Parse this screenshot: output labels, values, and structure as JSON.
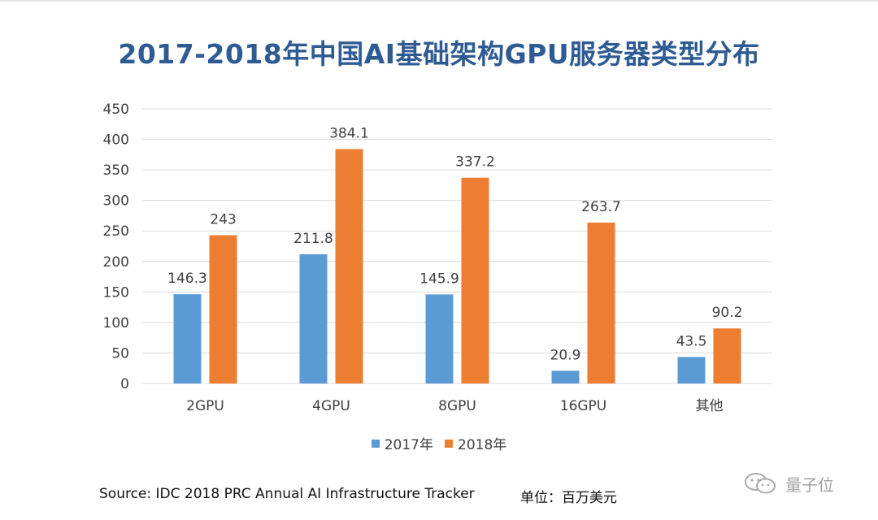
{
  "title": "2017-2018年中国AI基础架构GPU服务器类型分布",
  "chart_data": {
    "type": "bar",
    "title": "2017-2018年中国AI基础架构GPU服务器类型分布",
    "categories": [
      "2GPU",
      "4GPU",
      "8GPU",
      "16GPU",
      "其他"
    ],
    "series": [
      {
        "name": "2017年",
        "values": [
          146.3,
          211.8,
          145.9,
          20.9,
          43.5
        ],
        "labels": [
          "146.3",
          "211.8",
          "145.9",
          "20.9",
          "43.5"
        ],
        "color": "#5b9bd5"
      },
      {
        "name": "2018年",
        "values": [
          243,
          384.1,
          337.2,
          263.7,
          90.2
        ],
        "labels": [
          "243",
          "384.1",
          "337.2",
          "263.7",
          "90.2"
        ],
        "color": "#ed7d31"
      }
    ],
    "ylim": [
      0,
      450
    ],
    "yticks": [
      0,
      50,
      100,
      150,
      200,
      250,
      300,
      350,
      400,
      450
    ],
    "grid": true,
    "legend_position": "bottom"
  },
  "footer": {
    "source": "Source: IDC 2018 PRC Annual AI Infrastructure Tracker",
    "unit": "单位：百万美元"
  },
  "watermark": {
    "text": "量子位",
    "icon": "wechat-icon"
  }
}
